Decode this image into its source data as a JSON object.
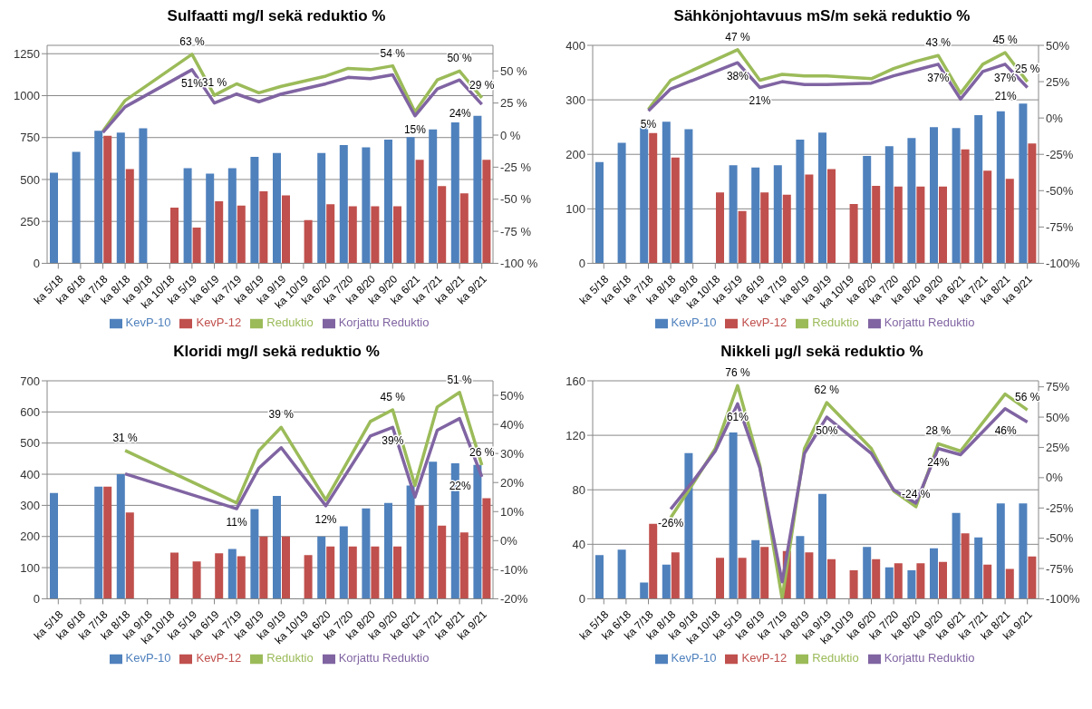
{
  "chart_data": [
    {
      "type": "bar",
      "title": "Sulfaatti mg/l sekä reduktio %",
      "categories": [
        "ka 5/18",
        "ka 6/18",
        "ka 7/18",
        "ka 8/18",
        "ka 9/18",
        "ka 10/18",
        "ka 5/19",
        "ka 6/19",
        "ka 7/19",
        "ka 8/19",
        "ka 9/19",
        "ka 10/19",
        "ka 6/20",
        "ka 7/20",
        "ka 8/20",
        "ka 9/20",
        "ka 6/21",
        "ka 7/21",
        "ka 8/21",
        "ka 9/21"
      ],
      "ylim": [
        0,
        1300
      ],
      "yticks": [
        0,
        250,
        500,
        750,
        1000,
        1250
      ],
      "y2lim": [
        -100,
        70
      ],
      "y2ticks": [
        {
          "value": -100,
          "label": "-100 %"
        },
        {
          "value": -75,
          "label": "-75 %"
        },
        {
          "value": -50,
          "label": "-50 %"
        },
        {
          "value": -25,
          "label": "-25 %"
        },
        {
          "value": 0,
          "label": "0 %"
        },
        {
          "value": 25,
          "label": "25 %"
        },
        {
          "value": 50,
          "label": "50 %"
        }
      ],
      "grid": "y",
      "legend": "bottom",
      "series": [
        {
          "name": "KevP-10",
          "type": "bar",
          "color": "#4f81bd",
          "values": [
            540,
            665,
            790,
            780,
            805,
            null,
            568,
            535,
            568,
            635,
            658,
            null,
            658,
            705,
            692,
            738,
            752,
            798,
            840,
            880
          ]
        },
        {
          "name": "KevP-12",
          "type": "bar",
          "color": "#c0504d",
          "values": [
            null,
            null,
            760,
            562,
            null,
            332,
            213,
            370,
            345,
            430,
            405,
            258,
            352,
            340,
            340,
            340,
            618,
            460,
            418,
            618
          ]
        },
        {
          "name": "Reduktio",
          "type": "line",
          "axis": "y2",
          "color": "#9bbb59",
          "values": [
            null,
            null,
            3,
            27,
            null,
            null,
            63,
            31,
            40,
            33,
            38,
            null,
            46,
            52,
            51,
            54,
            18,
            43,
            50,
            29
          ],
          "value_labels": [
            null,
            null,
            null,
            null,
            null,
            null,
            "63 %",
            "31 %",
            null,
            null,
            null,
            null,
            null,
            null,
            null,
            "54 %",
            null,
            null,
            "50 %",
            "29 %"
          ]
        },
        {
          "name": "Korjattu Reduktio",
          "type": "line",
          "axis": "y2",
          "color": "#8064a2",
          "values": [
            null,
            null,
            2,
            22,
            null,
            null,
            51,
            25,
            32,
            26,
            32,
            null,
            40,
            45,
            44,
            47,
            15,
            36,
            43,
            24
          ],
          "value_labels": [
            null,
            null,
            null,
            null,
            null,
            null,
            "51%",
            null,
            null,
            null,
            null,
            null,
            null,
            null,
            null,
            null,
            "15%",
            null,
            null,
            "24%"
          ]
        }
      ]
    },
    {
      "type": "bar",
      "title": "Sähkönjohtavuus  mS/m sekä reduktio %",
      "categories": [
        "ka 5/18",
        "ka 6/18",
        "ka 7/18",
        "ka 8/18",
        "ka 9/18",
        "ka 10/18",
        "ka 5/19",
        "ka 6/19",
        "ka 7/19",
        "ka 8/19",
        "ka 9/19",
        "ka 10/19",
        "ka 6/20",
        "ka 7/20",
        "ka 8/20",
        "ka 9/20",
        "ka 6/21",
        "ka 7/21",
        "ka 8/21",
        "ka 9/21"
      ],
      "ylim": [
        0,
        400
      ],
      "yticks": [
        0,
        100,
        200,
        300,
        400
      ],
      "y2lim": [
        -100,
        50
      ],
      "y2ticks": [
        {
          "value": -100,
          "label": "-100%"
        },
        {
          "value": -75,
          "label": "-75%"
        },
        {
          "value": -50,
          "label": "-50%"
        },
        {
          "value": -25,
          "label": "-25%"
        },
        {
          "value": 0,
          "label": "0%"
        },
        {
          "value": 25,
          "label": "25%"
        },
        {
          "value": 50,
          "label": "50%"
        }
      ],
      "grid": "y",
      "legend": "bottom",
      "series": [
        {
          "name": "KevP-10",
          "type": "bar",
          "color": "#4f81bd",
          "values": [
            186,
            221,
            254,
            260,
            246,
            null,
            180,
            176,
            180,
            227,
            240,
            null,
            197,
            215,
            230,
            250,
            248,
            272,
            279,
            293
          ]
        },
        {
          "name": "KevP-12",
          "type": "bar",
          "color": "#c0504d",
          "values": [
            null,
            null,
            239,
            194,
            null,
            130,
            96,
            130,
            126,
            163,
            173,
            109,
            142,
            141,
            141,
            141,
            209,
            170,
            155,
            220
          ]
        },
        {
          "name": "Reduktio",
          "type": "line",
          "axis": "y2",
          "color": "#9bbb59",
          "values": [
            null,
            null,
            6,
            26,
            null,
            null,
            47,
            26,
            30,
            29,
            29,
            null,
            27,
            34,
            39,
            43,
            17,
            37,
            45,
            25
          ],
          "value_labels": [
            null,
            null,
            null,
            null,
            null,
            null,
            "47 %",
            null,
            null,
            null,
            null,
            null,
            null,
            null,
            null,
            "43 %",
            null,
            null,
            "45 %",
            "25 %"
          ]
        },
        {
          "name": "Korjattu Reduktio",
          "type": "line",
          "axis": "y2",
          "color": "#8064a2",
          "values": [
            null,
            null,
            5,
            20,
            null,
            null,
            38,
            21,
            25,
            23,
            23,
            null,
            24,
            29,
            33,
            37,
            13,
            32,
            37,
            21
          ],
          "value_labels": [
            null,
            null,
            "5%",
            null,
            null,
            null,
            "38%",
            "21%",
            null,
            null,
            null,
            null,
            null,
            null,
            null,
            "37%",
            null,
            null,
            "37%",
            "21%"
          ]
        }
      ]
    },
    {
      "type": "bar",
      "title": "Kloridi mg/l sekä reduktio %",
      "categories": [
        "ka 5/18",
        "ka 6/18",
        "ka 7/18",
        "ka 8/18",
        "ka 9/18",
        "ka 10/18",
        "ka 5/19",
        "ka 6/19",
        "ka 7/19",
        "ka 8/19",
        "ka 9/19",
        "ka 10/19",
        "ka 6/20",
        "ka 7/20",
        "ka 8/20",
        "ka 9/20",
        "ka 6/21",
        "ka 7/21",
        "ka 8/21",
        "ka 9/21"
      ],
      "ylim": [
        0,
        700
      ],
      "yticks": [
        0,
        100,
        200,
        300,
        400,
        500,
        600,
        700
      ],
      "y2lim": [
        -20,
        55
      ],
      "y2ticks": [
        {
          "value": -20,
          "label": "-20%"
        },
        {
          "value": -10,
          "label": "-10%"
        },
        {
          "value": 0,
          "label": "0%"
        },
        {
          "value": 10,
          "label": "10%"
        },
        {
          "value": 20,
          "label": "20%"
        },
        {
          "value": 30,
          "label": "30%"
        },
        {
          "value": 40,
          "label": "40%"
        },
        {
          "value": 50,
          "label": "50%"
        }
      ],
      "grid": "y",
      "legend": "bottom",
      "series": [
        {
          "name": "KevP-10",
          "type": "bar",
          "color": "#4f81bd",
          "values": [
            340,
            null,
            360,
            400,
            null,
            null,
            null,
            null,
            160,
            288,
            330,
            null,
            200,
            233,
            290,
            308,
            364,
            440,
            435,
            430
          ]
        },
        {
          "name": "KevP-12",
          "type": "bar",
          "color": "#c0504d",
          "values": [
            null,
            null,
            360,
            277,
            null,
            148,
            120,
            146,
            137,
            200,
            200,
            140,
            168,
            168,
            168,
            168,
            300,
            235,
            213,
            323
          ]
        },
        {
          "name": "Reduktio",
          "type": "line",
          "axis": "y2",
          "color": "#9bbb59",
          "values": [
            null,
            null,
            null,
            31,
            null,
            null,
            null,
            null,
            13,
            31,
            39,
            null,
            14,
            null,
            41,
            45,
            19,
            46,
            51,
            26
          ],
          "value_labels": [
            null,
            null,
            null,
            "31 %",
            null,
            null,
            null,
            null,
            null,
            null,
            "39 %",
            null,
            null,
            null,
            null,
            "45 %",
            null,
            null,
            "51 %",
            "26 %"
          ]
        },
        {
          "name": "Korjattu Reduktio",
          "type": "line",
          "axis": "y2",
          "color": "#8064a2",
          "values": [
            null,
            null,
            null,
            23,
            null,
            null,
            null,
            null,
            11,
            25,
            32,
            null,
            12,
            null,
            36,
            39,
            15,
            38,
            42,
            22
          ],
          "value_labels": [
            null,
            null,
            null,
            null,
            null,
            null,
            null,
            null,
            "11%",
            null,
            null,
            null,
            "12%",
            null,
            null,
            "39%",
            null,
            null,
            null,
            "22%"
          ]
        }
      ]
    },
    {
      "type": "bar",
      "title": "Nikkeli µg/l sekä reduktio %",
      "categories": [
        "ka 5/18",
        "ka 6/18",
        "ka 7/18",
        "ka 8/18",
        "ka 9/18",
        "ka 10/18",
        "ka 5/19",
        "ka 6/19",
        "ka 7/19",
        "ka 8/19",
        "ka 9/19",
        "ka 10/19",
        "ka 6/20",
        "ka 7/20",
        "ka 8/20",
        "ka 9/20",
        "ka 6/21",
        "ka 7/21",
        "ka 8/21",
        "ka 9/21"
      ],
      "ylim": [
        0,
        160
      ],
      "yticks": [
        0,
        40,
        80,
        120,
        160
      ],
      "y2lim": [
        -100,
        80
      ],
      "y2ticks": [
        {
          "value": -100,
          "label": "-100%"
        },
        {
          "value": -75,
          "label": "-75%"
        },
        {
          "value": -50,
          "label": "-50%"
        },
        {
          "value": -25,
          "label": "-25%"
        },
        {
          "value": 0,
          "label": "0%"
        },
        {
          "value": 25,
          "label": "25%"
        },
        {
          "value": 50,
          "label": "50%"
        },
        {
          "value": 75,
          "label": "75%"
        }
      ],
      "grid": "y",
      "legend": "bottom",
      "series": [
        {
          "name": "KevP-10",
          "type": "bar",
          "color": "#4f81bd",
          "values": [
            32,
            36,
            12,
            25,
            107,
            null,
            122,
            43,
            null,
            46,
            77,
            null,
            38,
            23,
            21,
            37,
            63,
            45,
            70,
            70
          ]
        },
        {
          "name": "KevP-12",
          "type": "bar",
          "color": "#c0504d",
          "values": [
            null,
            null,
            55,
            34,
            null,
            30,
            30,
            38,
            35,
            34,
            29,
            21,
            29,
            26,
            26,
            27,
            48,
            25,
            22,
            31
          ]
        },
        {
          "name": "Reduktio",
          "type": "line",
          "axis": "y2",
          "color": "#9bbb59",
          "values": [
            null,
            null,
            null,
            -33,
            -5,
            24,
            76,
            10,
            -100,
            24,
            62,
            null,
            24,
            -11,
            -24,
            28,
            22,
            null,
            69,
            56
          ],
          "value_labels": [
            null,
            null,
            null,
            null,
            null,
            null,
            "76 %",
            null,
            null,
            null,
            "62 %",
            null,
            null,
            null,
            "-24 %",
            "28 %",
            null,
            null,
            null,
            "56 %"
          ]
        },
        {
          "name": "Korjattu Reduktio",
          "type": "line",
          "axis": "y2",
          "color": "#8064a2",
          "values": [
            null,
            null,
            null,
            -26,
            -3,
            22,
            61,
            8,
            -86,
            20,
            50,
            null,
            20,
            -10,
            -21,
            24,
            19,
            null,
            57,
            46
          ],
          "value_labels": [
            null,
            null,
            null,
            "-26%",
            null,
            null,
            "61%",
            null,
            null,
            null,
            "50%",
            null,
            null,
            null,
            null,
            "24%",
            null,
            null,
            null,
            "46%"
          ]
        }
      ]
    }
  ]
}
